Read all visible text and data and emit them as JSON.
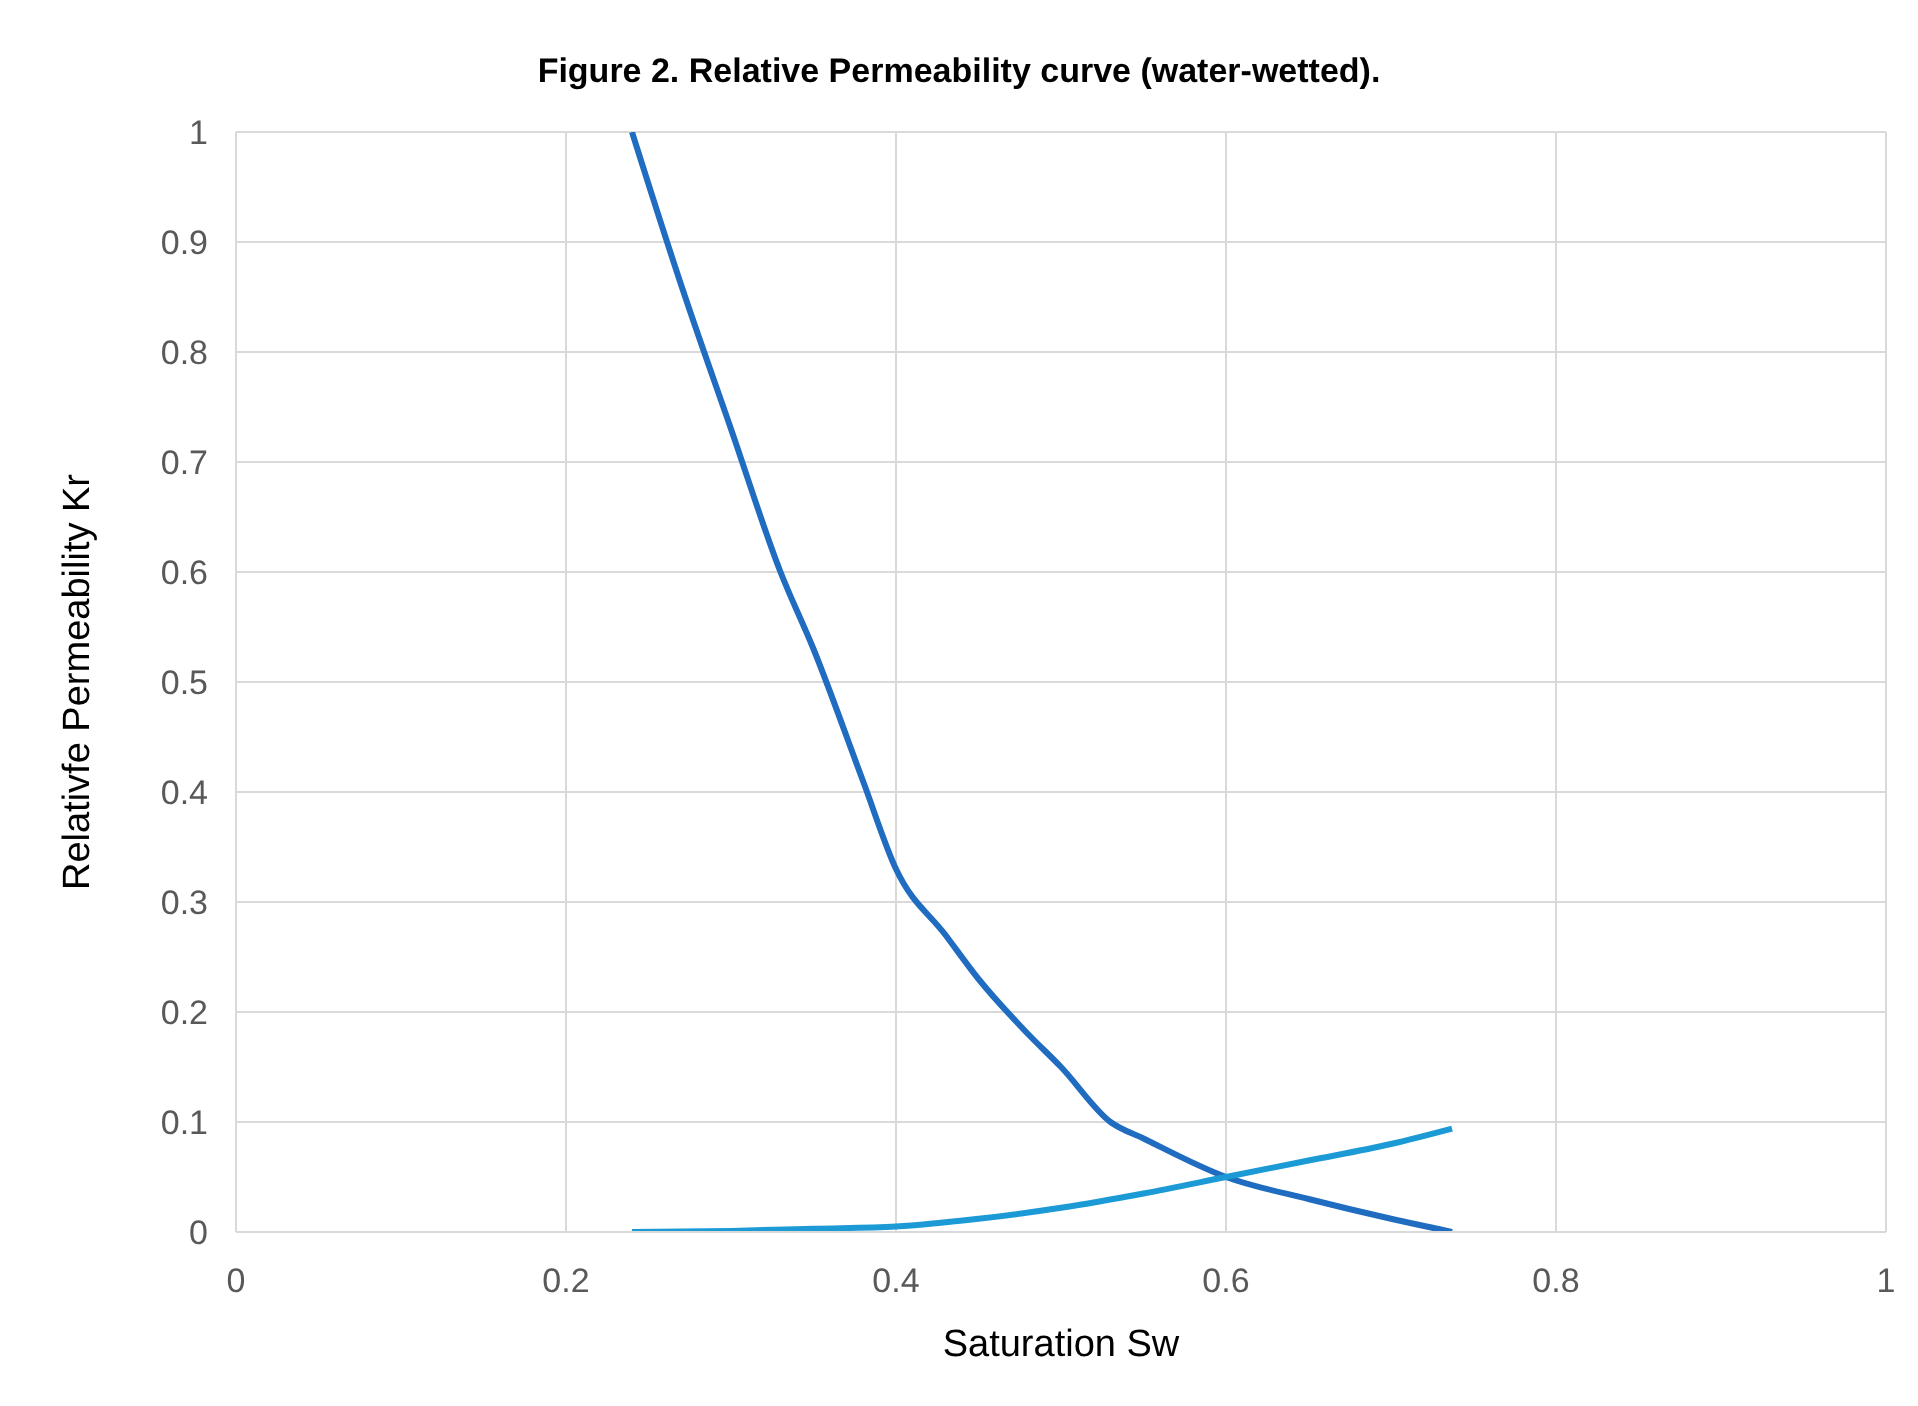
{
  "chart_data": {
    "type": "line",
    "title": "Figure 2. Relative Permeability curve (water-wetted).",
    "xlabel": "Saturation Sw",
    "ylabel": "Relativfe Permeability Kr",
    "series": [
      {
        "color": "#1f6cc0",
        "x": [
          0.24,
          0.27,
          0.3,
          0.33,
          0.35,
          0.38,
          0.4,
          0.43,
          0.45,
          0.48,
          0.5,
          0.53,
          0.55,
          0.6,
          0.65,
          0.7,
          0.737
        ],
        "values": [
          1,
          0.86,
          0.73,
          0.6,
          0.53,
          0.41,
          0.33,
          0.27,
          0.23,
          0.18,
          0.15,
          0.1,
          0.085,
          0.05,
          0.03,
          0.012,
          0
        ]
      },
      {
        "color": "#1b9ad6",
        "x": [
          0.24,
          0.3,
          0.35,
          0.4,
          0.45,
          0.5,
          0.55,
          0.6,
          0.65,
          0.7,
          0.737
        ],
        "values": [
          0,
          0.001,
          0.003,
          0.005,
          0.012,
          0.022,
          0.035,
          0.05,
          0.065,
          0.08,
          0.094
        ]
      }
    ],
    "xlim": [
      0,
      1
    ],
    "xticks": [
      0,
      0.2,
      0.4,
      0.6,
      0.8,
      1
    ],
    "ylim": [
      0,
      1
    ],
    "yticks": [
      0,
      0.1,
      0.2,
      0.3,
      0.4,
      0.5,
      0.6,
      0.7,
      0.8,
      0.9,
      1
    ],
    "grid": true,
    "legend": false
  }
}
